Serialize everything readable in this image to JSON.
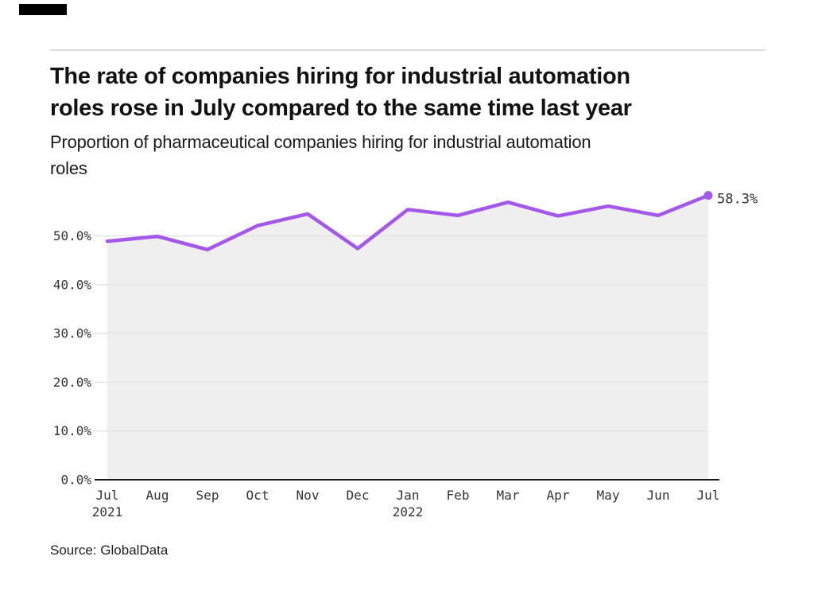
{
  "branding": {
    "top_bar_color": "#000000"
  },
  "header": {
    "title": "The rate of companies hiring for industrial automation roles rose in July compared to the same time last year",
    "title_lines": [
      "The rate of companies hiring for industrial automation",
      "roles rose in July compared to the same time last year"
    ],
    "subtitle": "Proportion of pharmaceutical companies hiring for industrial automation roles",
    "subtitle_lines": [
      "Proportion of pharmaceutical companies hiring for industrial automation",
      "roles"
    ]
  },
  "footer": {
    "source": "Source: GlobalData"
  },
  "chart_data": {
    "type": "line",
    "title": "The rate of companies hiring for industrial automation roles rose in July compared to the same time last year",
    "subtitle": "Proportion of pharmaceutical companies hiring for industrial automation roles",
    "categories": [
      "Jul",
      "Aug",
      "Sep",
      "Oct",
      "Nov",
      "Dec",
      "Jan",
      "Feb",
      "Mar",
      "Apr",
      "May",
      "Jun",
      "Jul"
    ],
    "category_sublabels": [
      "2021",
      "",
      "",
      "",
      "",
      "",
      "2022",
      "",
      "",
      "",
      "",
      "",
      ""
    ],
    "values": [
      48.9,
      49.9,
      47.2,
      52.1,
      54.5,
      47.4,
      55.4,
      54.2,
      56.9,
      54.1,
      56.1,
      54.2,
      58.3
    ],
    "end_label": "58.3%",
    "y_tick_labels": [
      "0.0%",
      "10.0%",
      "20.0%",
      "30.0%",
      "40.0%",
      "50.0%"
    ],
    "ylim": [
      0,
      61
    ],
    "grid": "horizontal",
    "legend": "none",
    "line_color": "#a357eb",
    "marker_color": "#a357eb",
    "area_fill_color": "#efefef",
    "gridline_color": "#e4e4e4",
    "axis_line_color": "#1a1a1a",
    "tick_text_color": "#333333"
  }
}
